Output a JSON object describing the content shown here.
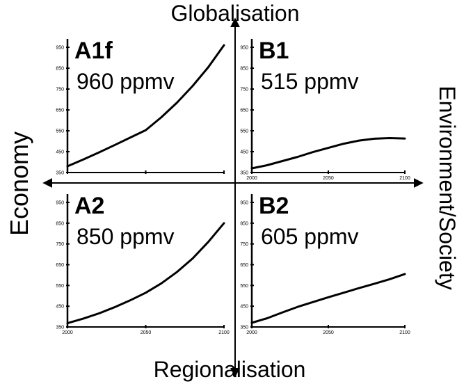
{
  "axes": {
    "top": "Globalisation",
    "bottom": "Regionalisation",
    "left": "Economy",
    "right": "Environment/Society"
  },
  "chart_data": [
    {
      "type": "line",
      "panel": "A1f",
      "annotation": "960 ppmv",
      "x": [
        2000,
        2010,
        2020,
        2030,
        2040,
        2050,
        2060,
        2070,
        2080,
        2090,
        2100
      ],
      "y": [
        380,
        412,
        446,
        481,
        517,
        553,
        615,
        685,
        765,
        855,
        960
      ],
      "xlim": [
        2000,
        2100
      ],
      "ylim": [
        350,
        970
      ],
      "yticks": [
        "350",
        "450",
        "550",
        "650",
        "750",
        "850",
        "950"
      ],
      "xticks": []
    },
    {
      "type": "line",
      "panel": "B1",
      "annotation": "515 ppmv",
      "x": [
        2000,
        2010,
        2020,
        2030,
        2040,
        2050,
        2060,
        2070,
        2080,
        2090,
        2100
      ],
      "y": [
        370,
        385,
        405,
        425,
        448,
        468,
        488,
        503,
        512,
        515,
        513
      ],
      "xlim": [
        2000,
        2100
      ],
      "ylim": [
        350,
        970
      ],
      "yticks": [
        "350",
        "450",
        "550",
        "650",
        "750",
        "850",
        "950"
      ],
      "xticks": [
        "2000",
        "2050",
        "2100"
      ]
    },
    {
      "type": "line",
      "panel": "A2",
      "annotation": "850 ppmv",
      "x": [
        2000,
        2010,
        2020,
        2030,
        2040,
        2050,
        2060,
        2070,
        2080,
        2090,
        2100
      ],
      "y": [
        368,
        390,
        415,
        445,
        478,
        515,
        560,
        615,
        680,
        760,
        850
      ],
      "xlim": [
        2000,
        2100
      ],
      "ylim": [
        350,
        970
      ],
      "yticks": [
        "350",
        "450",
        "550",
        "650",
        "750",
        "850",
        "950"
      ],
      "xticks": [
        "2000",
        "2050",
        "2100"
      ]
    },
    {
      "type": "line",
      "panel": "B2",
      "annotation": "605 ppmv",
      "x": [
        2000,
        2010,
        2020,
        2030,
        2040,
        2050,
        2060,
        2070,
        2080,
        2090,
        2100
      ],
      "y": [
        370,
        392,
        420,
        447,
        470,
        493,
        515,
        537,
        558,
        580,
        605
      ],
      "xlim": [
        2000,
        2100
      ],
      "ylim": [
        350,
        970
      ],
      "yticks": [
        "350",
        "450",
        "550",
        "650",
        "750",
        "850",
        "950"
      ],
      "xticks": [
        "2000",
        "2050",
        "2100"
      ]
    }
  ]
}
